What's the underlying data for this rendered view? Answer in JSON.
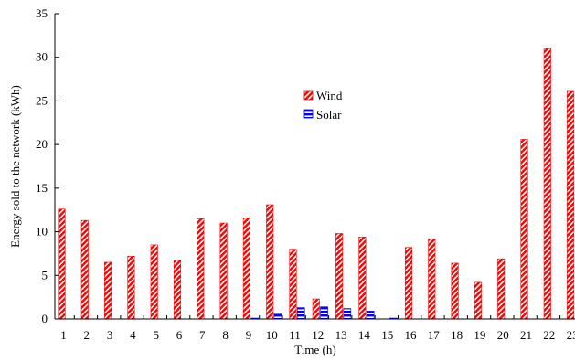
{
  "chart_data": {
    "type": "bar",
    "title": "",
    "xlabel": "Time (h)",
    "ylabel": "Energy sold to the network (kWh)",
    "ylim": [
      0,
      35
    ],
    "yticks": [
      0,
      5,
      10,
      15,
      20,
      25,
      30,
      35
    ],
    "grid": false,
    "legend_position": "upper-center",
    "categories": [
      "1",
      "2",
      "3",
      "4",
      "5",
      "6",
      "7",
      "8",
      "9",
      "10",
      "11",
      "12",
      "13",
      "14",
      "15",
      "16",
      "17",
      "18",
      "19",
      "20",
      "21",
      "22",
      "23"
    ],
    "series": [
      {
        "name": "Wind",
        "color": "#ff0000",
        "pattern": "diagonal-hatch",
        "values": [
          12.6,
          11.3,
          6.5,
          7.2,
          8.5,
          6.7,
          11.5,
          11.0,
          11.6,
          13.1,
          8.0,
          2.3,
          9.8,
          9.4,
          0.0,
          8.2,
          9.2,
          6.4,
          4.2,
          6.9,
          20.6,
          31.0,
          26.1
        ]
      },
      {
        "name": "Solar",
        "color": "#0000ff",
        "pattern": "horizontal-stripes",
        "values": [
          0,
          0,
          0,
          0,
          0,
          0,
          0,
          0,
          0.1,
          0.6,
          1.3,
          1.4,
          1.2,
          0.9,
          0.1,
          0,
          0,
          0,
          0,
          0,
          0,
          0,
          0
        ]
      }
    ]
  }
}
